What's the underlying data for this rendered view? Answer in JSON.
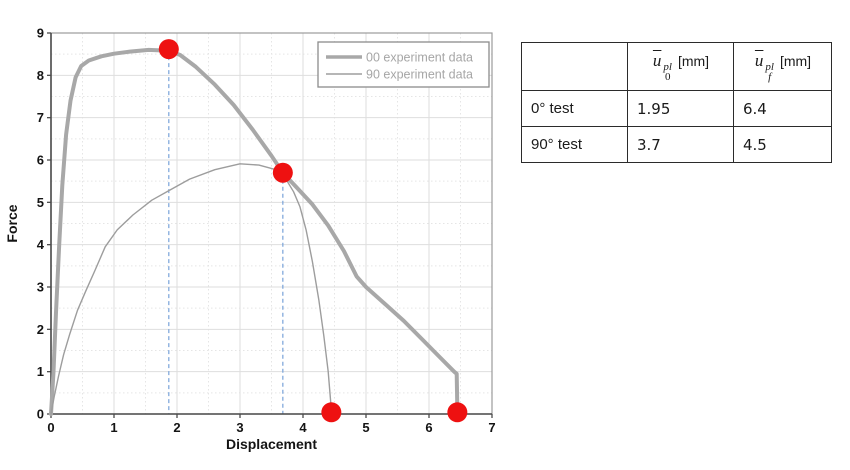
{
  "chart_data": {
    "type": "line",
    "title": "",
    "xlabel": "Displacement",
    "ylabel": "Force",
    "xlim": [
      0,
      7
    ],
    "ylim": [
      0,
      9
    ],
    "xticks": [
      0,
      1,
      2,
      3,
      4,
      5,
      6,
      7
    ],
    "yticks": [
      0,
      1,
      2,
      3,
      4,
      5,
      6,
      7,
      8,
      9
    ],
    "minor_step": 0.5,
    "grid": true,
    "legend_position": "top-right",
    "series": [
      {
        "name": "00 experiment data",
        "color": "#a8a8a8",
        "width": 4,
        "points": [
          [
            0,
            0
          ],
          [
            0.04,
            1.0
          ],
          [
            0.08,
            2.4
          ],
          [
            0.13,
            4.0
          ],
          [
            0.18,
            5.4
          ],
          [
            0.24,
            6.6
          ],
          [
            0.31,
            7.4
          ],
          [
            0.39,
            7.95
          ],
          [
            0.48,
            8.22
          ],
          [
            0.6,
            8.35
          ],
          [
            0.8,
            8.45
          ],
          [
            1.0,
            8.51
          ],
          [
            1.25,
            8.56
          ],
          [
            1.55,
            8.6
          ],
          [
            1.87,
            8.58
          ],
          [
            2.05,
            8.48
          ],
          [
            2.3,
            8.2
          ],
          [
            2.6,
            7.78
          ],
          [
            2.9,
            7.3
          ],
          [
            3.2,
            6.72
          ],
          [
            3.5,
            6.1
          ],
          [
            3.68,
            5.7
          ],
          [
            3.9,
            5.35
          ],
          [
            4.15,
            4.95
          ],
          [
            4.4,
            4.45
          ],
          [
            4.65,
            3.85
          ],
          [
            4.85,
            3.25
          ],
          [
            5.0,
            3.0
          ],
          [
            5.3,
            2.6
          ],
          [
            5.6,
            2.2
          ],
          [
            5.9,
            1.75
          ],
          [
            6.2,
            1.3
          ],
          [
            6.4,
            1.0
          ],
          [
            6.44,
            0.95
          ],
          [
            6.45,
            0.02
          ]
        ]
      },
      {
        "name": "90 experiment data",
        "color": "#9d9d9d",
        "width": 1.4,
        "points": [
          [
            0,
            0
          ],
          [
            0.05,
            0.4
          ],
          [
            0.12,
            0.9
          ],
          [
            0.2,
            1.4
          ],
          [
            0.3,
            1.9
          ],
          [
            0.42,
            2.45
          ],
          [
            0.55,
            2.9
          ],
          [
            0.7,
            3.4
          ],
          [
            0.86,
            3.95
          ],
          [
            1.05,
            4.35
          ],
          [
            1.3,
            4.7
          ],
          [
            1.6,
            5.05
          ],
          [
            1.9,
            5.3
          ],
          [
            2.2,
            5.55
          ],
          [
            2.6,
            5.77
          ],
          [
            3.0,
            5.91
          ],
          [
            3.3,
            5.88
          ],
          [
            3.55,
            5.78
          ],
          [
            3.7,
            5.62
          ],
          [
            3.85,
            5.25
          ],
          [
            3.95,
            4.9
          ],
          [
            4.05,
            4.35
          ],
          [
            4.15,
            3.6
          ],
          [
            4.25,
            2.7
          ],
          [
            4.33,
            1.85
          ],
          [
            4.4,
            1.0
          ],
          [
            4.45,
            0.08
          ]
        ]
      }
    ],
    "markers": {
      "color": "#ee1111",
      "radius": 10,
      "points": [
        [
          1.87,
          8.62
        ],
        [
          3.68,
          5.7
        ],
        [
          4.45,
          0.04
        ],
        [
          6.45,
          0.04
        ]
      ]
    },
    "guides": {
      "color": "#79a3d9",
      "points": [
        [
          1.87,
          8.62
        ],
        [
          3.68,
          5.7
        ]
      ]
    }
  },
  "table": {
    "headers": [
      {
        "var": "u",
        "sup": "pl",
        "sub": "0",
        "unit": "[mm]"
      },
      {
        "var": "u",
        "sup": "pl",
        "sub": "f",
        "unit": "[mm]"
      }
    ],
    "rows": [
      {
        "label": "0° test",
        "values": [
          "1.95",
          "6.4"
        ]
      },
      {
        "label": "90° test",
        "values": [
          "3.7",
          "4.5"
        ]
      }
    ]
  }
}
